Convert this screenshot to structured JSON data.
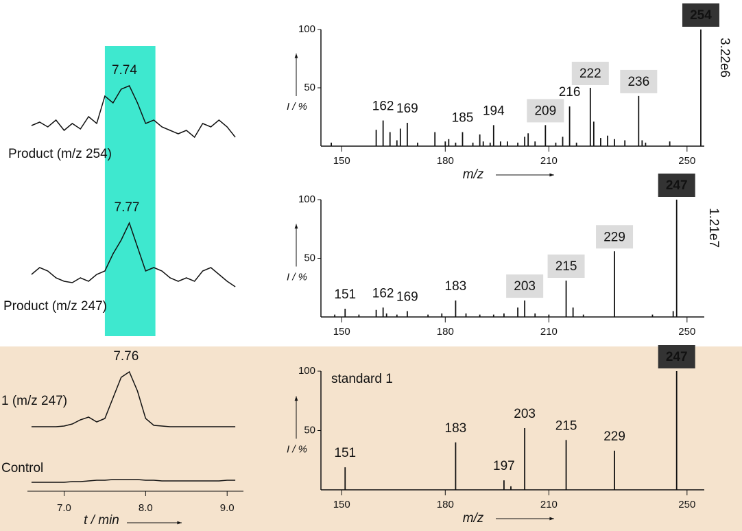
{
  "chart_data": [
    {
      "type": "chromatogram",
      "x_label": "t / min",
      "xlim": [
        6.55,
        9.2
      ],
      "xticks": [
        {
          "value": 7,
          "label": "7.0"
        },
        {
          "value": 8,
          "label": "8.0"
        },
        {
          "value": 9,
          "label": "9.0"
        }
      ],
      "highlight": [
        7.5,
        8.12
      ],
      "highlight_color": "#3ee8cf",
      "ylim": [
        0,
        100
      ],
      "color": "#111111",
      "x": [
        6.6,
        6.7,
        6.8,
        6.9,
        7.0,
        7.1,
        7.2,
        7.3,
        7.4,
        7.5,
        7.6,
        7.7,
        7.8,
        7.9,
        8.0,
        8.1,
        8.2,
        8.3,
        8.4,
        8.5,
        8.6,
        8.7,
        8.8,
        8.9,
        9.0,
        9.1
      ],
      "traces": [
        {
          "name": "Product (m/z 254)",
          "peak": 7.74,
          "values": [
            22,
            27,
            20,
            30,
            15,
            25,
            17,
            35,
            25,
            65,
            55,
            75,
            80,
            55,
            25,
            30,
            20,
            15,
            10,
            15,
            5,
            25,
            20,
            30,
            20,
            5
          ]
        },
        {
          "name": "Product (m/z 247)",
          "peak": 7.77,
          "values": [
            20,
            30,
            25,
            15,
            10,
            8,
            15,
            10,
            20,
            25,
            50,
            70,
            95,
            60,
            25,
            30,
            25,
            15,
            10,
            15,
            10,
            25,
            30,
            20,
            10,
            2
          ]
        },
        {
          "name": "1 (m/z 247)",
          "peak": 7.76,
          "values": [
            8,
            8,
            8,
            8,
            9,
            12,
            18,
            22,
            15,
            20,
            50,
            80,
            88,
            60,
            20,
            10,
            9,
            8,
            8,
            8,
            8,
            8,
            8,
            8,
            8,
            8
          ]
        },
        {
          "name": "Control",
          "values": [
            2,
            2,
            2,
            2,
            2,
            3,
            3,
            4,
            5,
            5,
            6,
            6,
            6,
            6,
            5,
            5,
            4,
            4,
            4,
            4,
            4,
            4,
            4,
            4,
            5,
            5
          ]
        }
      ]
    },
    {
      "type": "spectrum",
      "scale": "3.22e6",
      "x_label": "m/z",
      "y_label": "I / %",
      "color": "#111111",
      "xlim": [
        144,
        255
      ],
      "xticks": [
        150,
        180,
        210,
        250
      ],
      "ylim": [
        0,
        100
      ],
      "yticks": [
        50,
        100
      ],
      "peaks": {
        "x": [
          147,
          160,
          162,
          164,
          166,
          167,
          169,
          172,
          177,
          180,
          181,
          183,
          185,
          188,
          190,
          191,
          193,
          194,
          196,
          198,
          201,
          203,
          204,
          206,
          209,
          212,
          214,
          216,
          218,
          222,
          223,
          225,
          227,
          229,
          232,
          236,
          237,
          238,
          245,
          254
        ],
        "values": [
          3,
          14,
          22,
          12,
          5,
          15,
          20,
          3,
          12,
          4,
          6,
          3,
          12,
          3,
          10,
          4,
          3,
          18,
          4,
          4,
          3,
          8,
          11,
          4,
          18,
          3,
          8,
          34,
          3,
          50,
          21,
          7,
          9,
          6,
          5,
          43,
          5,
          3,
          4,
          100
        ]
      },
      "labels": [
        {
          "x": 162,
          "box": "none"
        },
        {
          "x": 169,
          "box": "none"
        },
        {
          "x": 185,
          "box": "none"
        },
        {
          "x": 194,
          "box": "none"
        },
        {
          "x": 209,
          "box": "light"
        },
        {
          "x": 216,
          "box": "none"
        },
        {
          "x": 222,
          "box": "light"
        },
        {
          "x": 236,
          "box": "light"
        },
        {
          "x": 254,
          "box": "dark"
        }
      ]
    },
    {
      "type": "spectrum",
      "scale": "1.21e7",
      "y_label": "I / %",
      "color": "#111111",
      "xlim": [
        144,
        255
      ],
      "xticks": [
        150,
        180,
        210,
        250
      ],
      "ylim": [
        0,
        100
      ],
      "yticks": [
        50,
        100
      ],
      "peaks": {
        "x": [
          148,
          151,
          155,
          160,
          162,
          163,
          166,
          169,
          175,
          179,
          183,
          186,
          190,
          194,
          197,
          201,
          203,
          206,
          210,
          215,
          217,
          220,
          229,
          240,
          246,
          247
        ],
        "values": [
          2,
          7,
          2,
          6,
          8,
          3,
          2,
          5,
          2,
          3,
          14,
          3,
          2,
          2,
          3,
          8,
          14,
          3,
          2,
          31,
          8,
          2,
          56,
          2,
          5,
          100
        ]
      },
      "labels": [
        {
          "x": 151,
          "box": "none"
        },
        {
          "x": 162,
          "box": "none"
        },
        {
          "x": 169,
          "box": "none"
        },
        {
          "x": 183,
          "box": "none"
        },
        {
          "x": 203,
          "box": "light"
        },
        {
          "x": 215,
          "box": "light"
        },
        {
          "x": 229,
          "box": "light"
        },
        {
          "x": 247,
          "box": "dark"
        }
      ]
    },
    {
      "type": "spectrum",
      "annotation": "standard 1",
      "x_label": "m/z",
      "y_label": "I / %",
      "color": "#111111",
      "xlim": [
        144,
        255
      ],
      "xticks": [
        150,
        180,
        210,
        250
      ],
      "ylim": [
        0,
        100
      ],
      "yticks": [
        50,
        100
      ],
      "peaks": {
        "x": [
          151,
          183,
          197,
          199,
          203,
          215,
          229,
          247
        ],
        "values": [
          19,
          40,
          8,
          3,
          52,
          42,
          33,
          100
        ]
      },
      "labels": [
        {
          "x": 151,
          "box": "none"
        },
        {
          "x": 183,
          "box": "none"
        },
        {
          "x": 197,
          "box": "none"
        },
        {
          "x": 203,
          "box": "none"
        },
        {
          "x": 215,
          "box": "none"
        },
        {
          "x": 229,
          "box": "none"
        },
        {
          "x": 247,
          "box": "dark"
        }
      ]
    }
  ]
}
